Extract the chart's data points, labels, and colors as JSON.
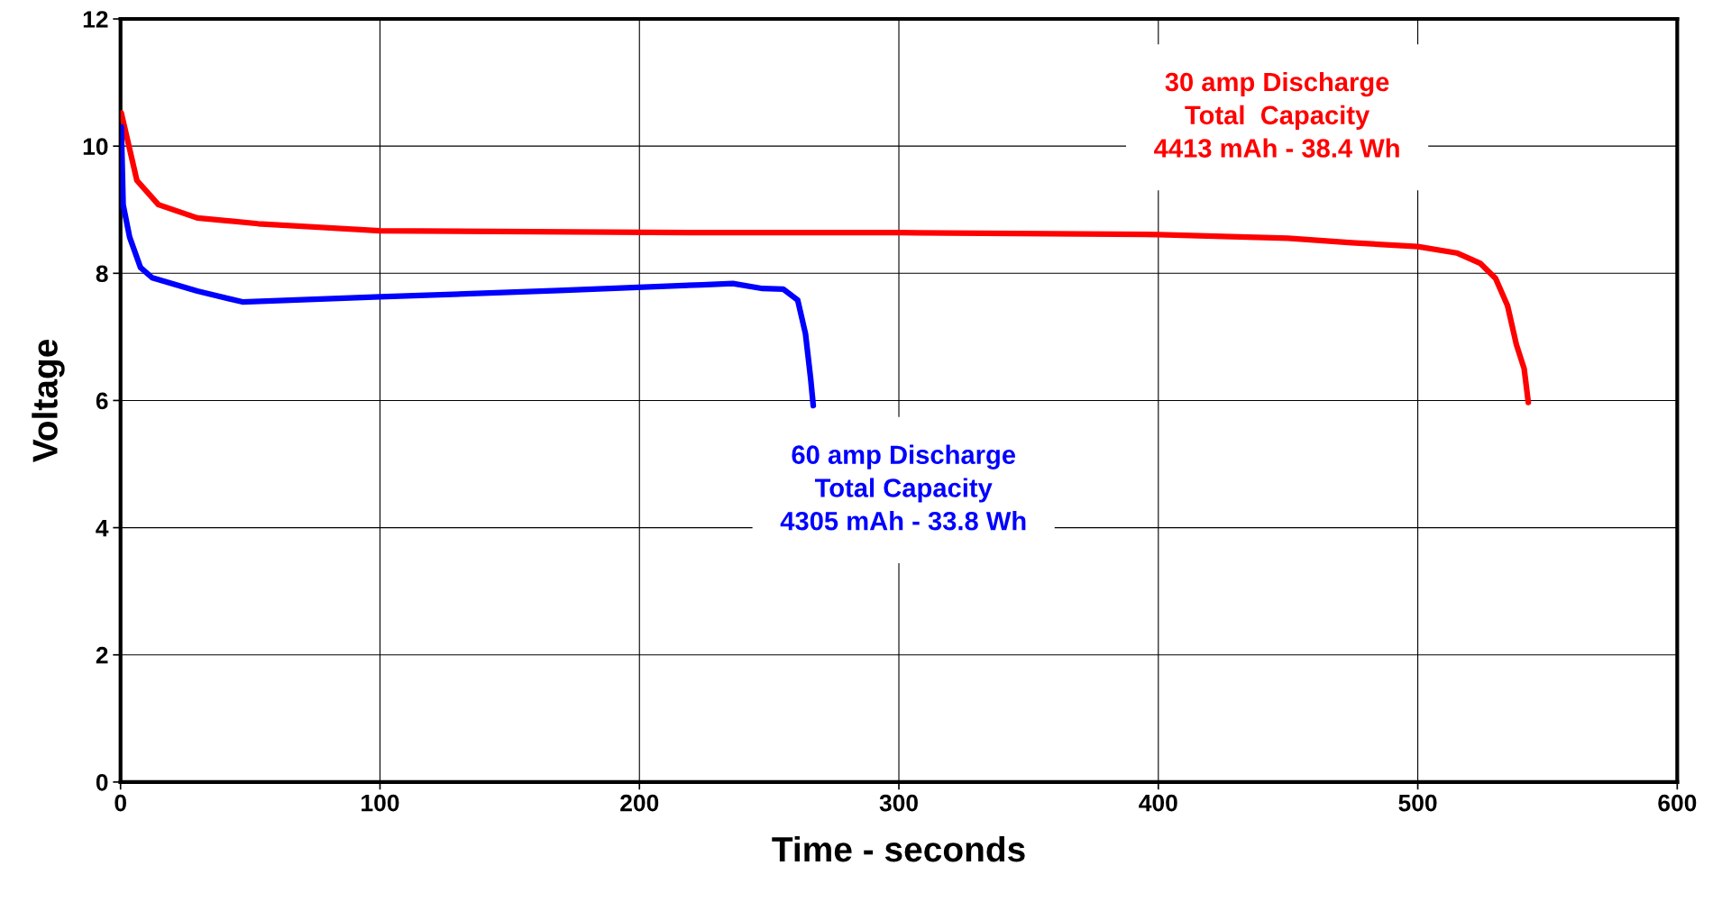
{
  "chart_data": {
    "type": "line",
    "xlabel": "Time - seconds",
    "ylabel": "Voltage",
    "xlim": [
      0,
      600
    ],
    "xticks": [
      0,
      100,
      200,
      300,
      400,
      500,
      600
    ],
    "ylim": [
      0,
      12
    ],
    "yticks": [
      0,
      2,
      4,
      6,
      8,
      10,
      12
    ],
    "grid": true,
    "marker": "none",
    "line_style": "solid",
    "legend": false,
    "series": [
      {
        "color": "#ff0000",
        "x": [
          0.3,
          6.3,
          14.6,
          29.6,
          53,
          100,
          224,
          300,
          400,
          450,
          474.5,
          500,
          515,
          524,
          530,
          534.6,
          538,
          541,
          542.6
        ],
        "values": [
          10.52,
          9.46,
          9.08,
          8.87,
          8.78,
          8.67,
          8.64,
          8.64,
          8.61,
          8.55,
          8.48,
          8.42,
          8.32,
          8.16,
          7.92,
          7.49,
          6.88,
          6.5,
          5.97
        ]
      },
      {
        "color": "#0000ff",
        "x": [
          0.3,
          1,
          3.5,
          7.7,
          12.2,
          29.6,
          47,
          100,
          169,
          224,
          236,
          247.5,
          255.5,
          261,
          264,
          266,
          267
        ],
        "values": [
          10.3,
          9.08,
          8.57,
          8.09,
          7.93,
          7.72,
          7.55,
          7.63,
          7.73,
          7.82,
          7.84,
          7.76,
          7.75,
          7.58,
          7.05,
          6.34,
          5.92
        ]
      }
    ],
    "annotations": [
      "30 amp Discharge\nTotal  Capacity\n4413 mAh - 38.4 Wh",
      "60 amp Discharge\nTotal Capacity\n4305 mAh - 33.8 Wh"
    ]
  }
}
